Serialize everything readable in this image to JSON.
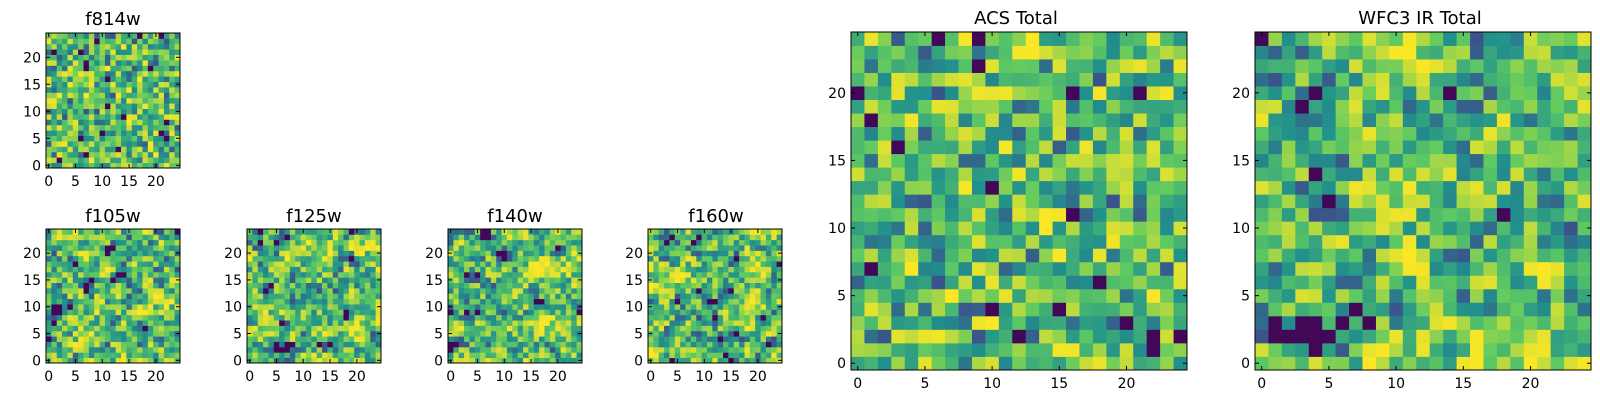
{
  "figure": {
    "background": "#ffffff"
  },
  "colormap": {
    "name": "viridis",
    "stops": [
      "#440154",
      "#3b528b",
      "#21918c",
      "#5ec962",
      "#fde725"
    ]
  },
  "chart_data": [
    {
      "id": "f814w",
      "type": "heatmap",
      "title": "f814w",
      "grid_size": 25,
      "xticks": [
        "0",
        "5",
        "10",
        "15",
        "20"
      ],
      "yticks": [
        "0",
        "5",
        "10",
        "15",
        "20"
      ],
      "xlim": [
        -0.5,
        24.5
      ],
      "ylim": [
        -0.5,
        24.5
      ],
      "value_range": [
        0,
        1
      ],
      "seed": 814,
      "smoothing": 0
    },
    {
      "id": "f105w",
      "type": "heatmap",
      "title": "f105w",
      "grid_size": 25,
      "xticks": [
        "0",
        "5",
        "10",
        "15",
        "20"
      ],
      "yticks": [
        "0",
        "5",
        "10",
        "15",
        "20"
      ],
      "xlim": [
        -0.5,
        24.5
      ],
      "ylim": [
        -0.5,
        24.5
      ],
      "value_range": [
        0,
        1
      ],
      "seed": 105,
      "smoothing": 1
    },
    {
      "id": "f125w",
      "type": "heatmap",
      "title": "f125w",
      "grid_size": 25,
      "xticks": [
        "0",
        "5",
        "10",
        "15",
        "20"
      ],
      "yticks": [
        "0",
        "5",
        "10",
        "15",
        "20"
      ],
      "xlim": [
        -0.5,
        24.5
      ],
      "ylim": [
        -0.5,
        24.5
      ],
      "value_range": [
        0,
        1
      ],
      "seed": 125,
      "smoothing": 1
    },
    {
      "id": "f140w",
      "type": "heatmap",
      "title": "f140w",
      "grid_size": 25,
      "xticks": [
        "0",
        "5",
        "10",
        "15",
        "20"
      ],
      "yticks": [
        "0",
        "5",
        "10",
        "15",
        "20"
      ],
      "xlim": [
        -0.5,
        24.5
      ],
      "ylim": [
        -0.5,
        24.5
      ],
      "value_range": [
        0,
        1
      ],
      "seed": 140,
      "smoothing": 1
    },
    {
      "id": "f160w",
      "type": "heatmap",
      "title": "f160w",
      "grid_size": 25,
      "xticks": [
        "0",
        "5",
        "10",
        "15",
        "20"
      ],
      "yticks": [
        "0",
        "5",
        "10",
        "15",
        "20"
      ],
      "xlim": [
        -0.5,
        24.5
      ],
      "ylim": [
        -0.5,
        24.5
      ],
      "value_range": [
        0,
        1
      ],
      "seed": 160,
      "smoothing": 1
    },
    {
      "id": "acs_total",
      "type": "heatmap",
      "title": "ACS Total",
      "grid_size": 25,
      "xticks": [
        "0",
        "5",
        "10",
        "15",
        "20"
      ],
      "yticks": [
        "0",
        "5",
        "10",
        "15",
        "20"
      ],
      "xlim": [
        -0.5,
        24.5
      ],
      "ylim": [
        -0.5,
        24.5
      ],
      "value_range": [
        0,
        1
      ],
      "seed": 300,
      "smoothing": 0
    },
    {
      "id": "wfc3_ir_total",
      "type": "heatmap",
      "title": "WFC3 IR Total",
      "grid_size": 25,
      "xticks": [
        "0",
        "5",
        "10",
        "15",
        "20"
      ],
      "yticks": [
        "0",
        "5",
        "10",
        "15",
        "20"
      ],
      "xlim": [
        -0.5,
        24.5
      ],
      "ylim": [
        -0.5,
        24.5
      ],
      "value_range": [
        0,
        1
      ],
      "seed": 400,
      "smoothing": 1
    }
  ]
}
